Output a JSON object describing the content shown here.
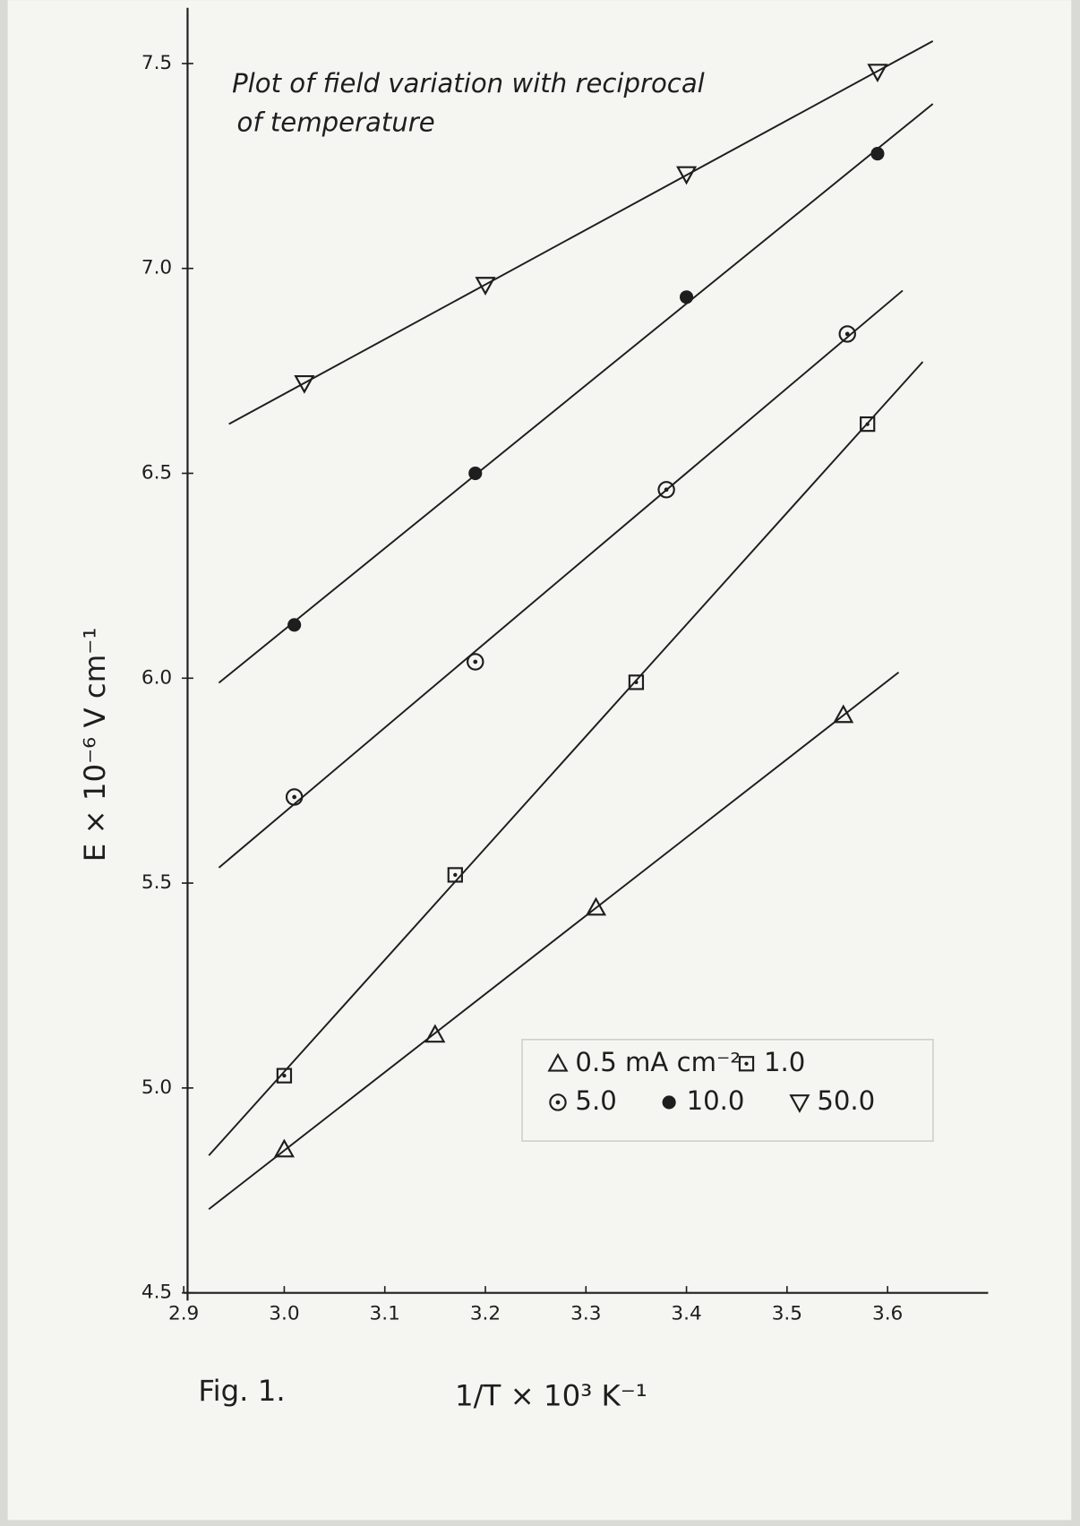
{
  "chart_data": {
    "type": "scatter",
    "title_lines": [
      "Plot of field variation with reciprocal",
      "of temperature"
    ],
    "x_label": "1/T × 10³ K⁻¹",
    "y_label": "E × 10⁻⁶ V cm⁻¹",
    "caption": "Fig. 1.",
    "xlim": [
      2.9,
      3.7
    ],
    "ylim": [
      4.5,
      7.65
    ],
    "xticks": [
      2.9,
      {
        "value": 3,
        "label": "3.0"
      },
      3.1,
      3.2,
      3.3,
      3.4,
      3.5,
      3.6
    ],
    "yticks": [
      4.5,
      {
        "value": 5,
        "label": "5.0"
      },
      5.5,
      {
        "value": 6,
        "label": "6.0"
      },
      6.5,
      {
        "value": 7,
        "label": "7.0"
      },
      7.5
    ],
    "fit_lines": true,
    "series": [
      {
        "name": "0.5 mA cm⁻²",
        "marker": "triangle",
        "color": "#1e1e1e",
        "x": [
          3.0,
          3.15,
          3.31,
          3.556
        ],
        "values": [
          4.85,
          5.13,
          5.44,
          5.91
        ]
      },
      {
        "name": "1.0",
        "marker": "dotted-square",
        "color": "#1e1e1e",
        "x": [
          3.0,
          3.17,
          3.35,
          3.58
        ],
        "values": [
          5.03,
          5.52,
          5.99,
          6.62
        ]
      },
      {
        "name": "5.0",
        "marker": "dotted-circle",
        "color": "#1e1e1e",
        "x": [
          3.01,
          3.19,
          3.38,
          3.56
        ],
        "values": [
          5.71,
          6.04,
          6.46,
          6.84
        ]
      },
      {
        "name": "10.0",
        "marker": "filled-circle",
        "color": "#1e1e1e",
        "x": [
          3.01,
          3.19,
          3.4,
          3.59
        ],
        "values": [
          6.13,
          6.5,
          6.93,
          7.28
        ]
      },
      {
        "name": "50.0",
        "marker": "inverted-triangle",
        "color": "#1e1e1e",
        "x": [
          3.02,
          3.2,
          3.4,
          3.59
        ],
        "values": [
          6.72,
          6.96,
          7.23,
          7.48
        ]
      }
    ]
  }
}
